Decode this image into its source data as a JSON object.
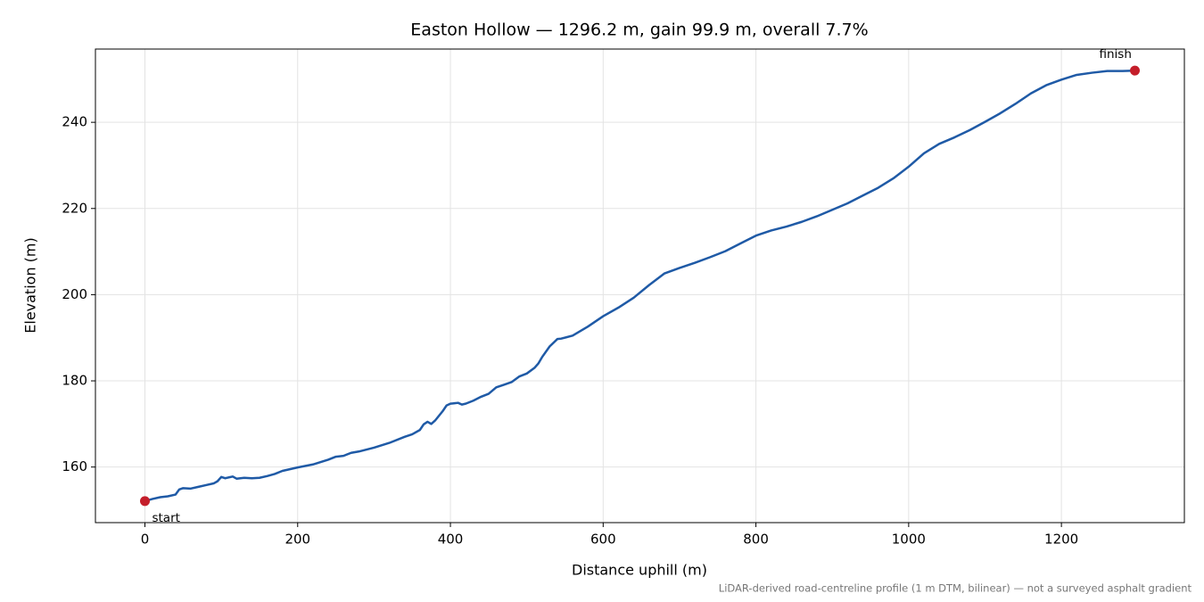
{
  "chart_data": {
    "type": "line",
    "title": "Easton Hollow — 1296.2 m, gain 99.9 m, overall 7.7%",
    "xlabel": "Distance uphill (m)",
    "ylabel": "Elevation (m)",
    "footnote": "LiDAR-derived road-centreline profile (1 m DTM, bilinear) — not a surveyed asphalt gradient",
    "color": "#1f5aa6",
    "x": [
      0,
      10,
      20,
      30,
      40,
      45,
      50,
      60,
      70,
      80,
      90,
      95,
      100,
      105,
      110,
      115,
      120,
      130,
      140,
      150,
      160,
      170,
      180,
      200,
      220,
      240,
      250,
      260,
      270,
      280,
      300,
      320,
      340,
      350,
      360,
      365,
      370,
      375,
      380,
      390,
      395,
      400,
      410,
      415,
      420,
      430,
      440,
      450,
      460,
      470,
      480,
      490,
      500,
      510,
      515,
      520,
      530,
      540,
      545,
      560,
      580,
      600,
      620,
      640,
      660,
      680,
      700,
      720,
      740,
      760,
      780,
      800,
      820,
      840,
      860,
      880,
      900,
      920,
      940,
      960,
      980,
      1000,
      1020,
      1040,
      1060,
      1080,
      1100,
      1120,
      1140,
      1160,
      1180,
      1200,
      1220,
      1240,
      1260,
      1280,
      1296.2
    ],
    "values": [
      152.1,
      152.6,
      153.0,
      153.2,
      153.6,
      154.8,
      155.1,
      155.0,
      155.4,
      155.8,
      156.2,
      156.7,
      157.7,
      157.4,
      157.6,
      157.8,
      157.3,
      157.5,
      157.4,
      157.5,
      157.9,
      158.4,
      159.1,
      159.9,
      160.6,
      161.7,
      162.4,
      162.6,
      163.3,
      163.6,
      164.5,
      165.6,
      167.0,
      167.6,
      168.6,
      169.9,
      170.5,
      170.0,
      170.8,
      173.0,
      174.3,
      174.7,
      174.9,
      174.5,
      174.7,
      175.4,
      176.3,
      177.0,
      178.5,
      179.1,
      179.7,
      181.0,
      181.7,
      183.0,
      184.0,
      185.5,
      188.0,
      189.7,
      189.8,
      190.5,
      192.6,
      195.0,
      197.0,
      199.3,
      202.2,
      204.9,
      206.2,
      207.4,
      208.7,
      210.1,
      211.9,
      213.7,
      214.9,
      215.8,
      216.9,
      218.2,
      219.7,
      221.2,
      223.0,
      224.8,
      227.0,
      229.7,
      232.8,
      235.0,
      236.5,
      238.2,
      240.1,
      242.1,
      244.3,
      246.7,
      248.6,
      249.9,
      251.0,
      251.5,
      251.9,
      251.9,
      252.0
    ],
    "markers": [
      {
        "label": "start",
        "x": 0,
        "y": 152.1,
        "color": "#c41e2a"
      },
      {
        "label": "finish",
        "x": 1296.2,
        "y": 252.0,
        "color": "#c41e2a"
      }
    ],
    "xlim": [
      -64.8,
      1361
    ],
    "ylim": [
      147.1,
      257.0
    ],
    "xticks": [
      0,
      200,
      400,
      600,
      800,
      1000,
      1200
    ],
    "yticks": [
      160,
      180,
      200,
      220,
      240
    ],
    "grid": true
  }
}
